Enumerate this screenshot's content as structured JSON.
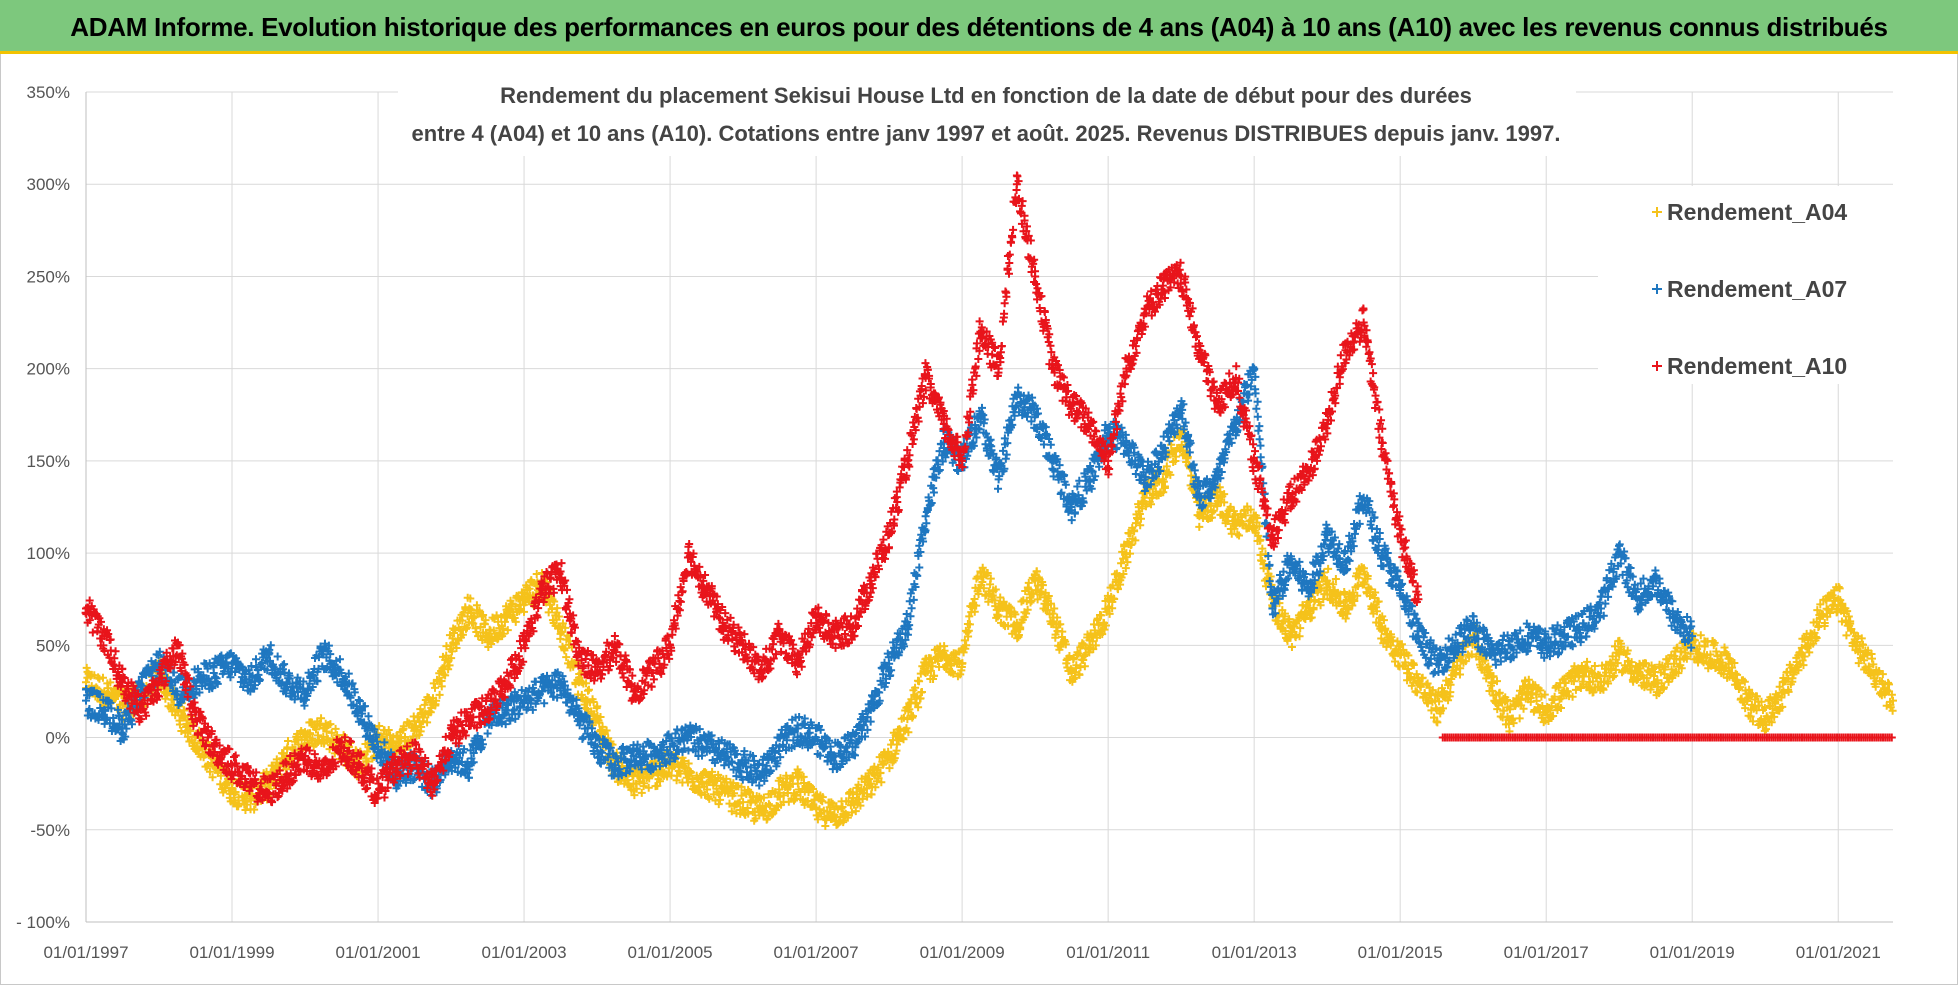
{
  "banner": {
    "title": "ADAM Informe. Evolution historique des performances en euros pour des détentions de 4 ans (A04) à 10 ans (A10) avec les revenus connus distribués"
  },
  "colors": {
    "banner_bg": "#7dc87d",
    "banner_border": "#f2c200",
    "A04": "#f5c21b",
    "A07": "#1f77c0",
    "A10": "#e8141b"
  },
  "chart_data": {
    "type": "scatter",
    "title_line1": "Rendement du placement Sekisui House Ltd en fonction de la date de début pour des durées",
    "title_line2": "entre 4 (A04) et 10 ans (A10).  Cotations entre janv 1997 et août. 2025. Revenus DISTRIBUES depuis janv. 1997.",
    "marker": "+",
    "x_axis": {
      "type": "date",
      "min": "1997-01-01",
      "max": "2021-10-01",
      "tick_labels": [
        "01/01/1997",
        "01/01/1999",
        "01/01/2001",
        "01/01/2003",
        "01/01/2005",
        "01/01/2007",
        "01/01/2009",
        "01/01/2011",
        "01/01/2013",
        "01/01/2015",
        "01/01/2017",
        "01/01/2019",
        "01/01/2021"
      ]
    },
    "y_axis": {
      "min": -100,
      "max": 350,
      "unit": "%",
      "tick_labels": [
        "350%",
        "300%",
        "250%",
        "200%",
        "150%",
        "100%",
        "50%",
        "0%",
        "-50%",
        " - 100%"
      ],
      "tick_values": [
        350,
        300,
        250,
        200,
        150,
        100,
        50,
        0,
        -50,
        -100
      ]
    },
    "grid": true,
    "legend_position": "right",
    "series": [
      {
        "name": "Rendement_A04",
        "color_key": "A04",
        "points": [
          [
            "1997-01",
            30
          ],
          [
            "1997-04",
            25
          ],
          [
            "1997-07",
            18
          ],
          [
            "1997-10",
            22
          ],
          [
            "1998-01",
            35
          ],
          [
            "1998-04",
            15
          ],
          [
            "1998-07",
            0
          ],
          [
            "1998-10",
            -15
          ],
          [
            "1999-01",
            -28
          ],
          [
            "1999-04",
            -33
          ],
          [
            "1999-07",
            -25
          ],
          [
            "1999-10",
            -10
          ],
          [
            "2000-01",
            0
          ],
          [
            "2000-04",
            5
          ],
          [
            "2000-07",
            -5
          ],
          [
            "2000-10",
            -15
          ],
          [
            "2001-01",
            0
          ],
          [
            "2001-04",
            -5
          ],
          [
            "2001-07",
            5
          ],
          [
            "2001-10",
            20
          ],
          [
            "2002-01",
            50
          ],
          [
            "2002-04",
            70
          ],
          [
            "2002-07",
            55
          ],
          [
            "2002-10",
            65
          ],
          [
            "2003-01",
            75
          ],
          [
            "2003-04",
            85
          ],
          [
            "2003-07",
            60
          ],
          [
            "2003-10",
            30
          ],
          [
            "2004-01",
            10
          ],
          [
            "2004-04",
            -15
          ],
          [
            "2004-07",
            -25
          ],
          [
            "2004-10",
            -20
          ],
          [
            "2005-01",
            -15
          ],
          [
            "2005-04",
            -20
          ],
          [
            "2005-07",
            -25
          ],
          [
            "2005-10",
            -30
          ],
          [
            "2006-01",
            -35
          ],
          [
            "2006-04",
            -40
          ],
          [
            "2006-07",
            -30
          ],
          [
            "2006-10",
            -25
          ],
          [
            "2007-01",
            -38
          ],
          [
            "2007-04",
            -42
          ],
          [
            "2007-07",
            -35
          ],
          [
            "2007-10",
            -25
          ],
          [
            "2008-01",
            -10
          ],
          [
            "2008-04",
            10
          ],
          [
            "2008-07",
            35
          ],
          [
            "2008-10",
            45
          ],
          [
            "2009-01",
            40
          ],
          [
            "2009-04",
            90
          ],
          [
            "2009-07",
            70
          ],
          [
            "2009-10",
            60
          ],
          [
            "2010-01",
            85
          ],
          [
            "2010-04",
            65
          ],
          [
            "2010-07",
            35
          ],
          [
            "2010-10",
            50
          ],
          [
            "2011-01",
            70
          ],
          [
            "2011-04",
            100
          ],
          [
            "2011-07",
            130
          ],
          [
            "2011-10",
            140
          ],
          [
            "2012-01",
            165
          ],
          [
            "2012-04",
            120
          ],
          [
            "2012-07",
            130
          ],
          [
            "2012-10",
            115
          ],
          [
            "2013-01",
            120
          ],
          [
            "2013-04",
            75
          ],
          [
            "2013-07",
            55
          ],
          [
            "2013-10",
            70
          ],
          [
            "2014-01",
            85
          ],
          [
            "2014-04",
            70
          ],
          [
            "2014-07",
            90
          ],
          [
            "2014-10",
            60
          ],
          [
            "2015-01",
            45
          ],
          [
            "2015-04",
            30
          ],
          [
            "2015-07",
            15
          ],
          [
            "2015-10",
            35
          ],
          [
            "2016-01",
            55
          ],
          [
            "2016-04",
            30
          ],
          [
            "2016-07",
            10
          ],
          [
            "2016-10",
            25
          ],
          [
            "2017-01",
            15
          ],
          [
            "2017-04",
            25
          ],
          [
            "2017-07",
            35
          ],
          [
            "2017-10",
            30
          ],
          [
            "2018-01",
            45
          ],
          [
            "2018-04",
            35
          ],
          [
            "2018-07",
            30
          ],
          [
            "2018-10",
            40
          ],
          [
            "2019-01",
            50
          ],
          [
            "2019-04",
            45
          ],
          [
            "2019-07",
            40
          ],
          [
            "2019-10",
            20
          ],
          [
            "2020-01",
            10
          ],
          [
            "2020-04",
            25
          ],
          [
            "2020-07",
            45
          ],
          [
            "2020-10",
            65
          ],
          [
            "2021-01",
            75
          ],
          [
            "2021-04",
            50
          ],
          [
            "2021-07",
            35
          ],
          [
            "2021-10",
            20
          ]
        ]
      },
      {
        "name": "Rendement_A07",
        "color_key": "A07",
        "points": [
          [
            "1997-01",
            20
          ],
          [
            "1997-04",
            15
          ],
          [
            "1997-07",
            5
          ],
          [
            "1997-10",
            25
          ],
          [
            "1998-01",
            40
          ],
          [
            "1998-04",
            25
          ],
          [
            "1998-07",
            30
          ],
          [
            "1998-10",
            35
          ],
          [
            "1999-01",
            40
          ],
          [
            "1999-04",
            30
          ],
          [
            "1999-07",
            45
          ],
          [
            "1999-10",
            30
          ],
          [
            "2000-01",
            25
          ],
          [
            "2000-04",
            45
          ],
          [
            "2000-07",
            35
          ],
          [
            "2000-10",
            15
          ],
          [
            "2001-01",
            -5
          ],
          [
            "2001-04",
            -20
          ],
          [
            "2001-07",
            -15
          ],
          [
            "2001-10",
            -25
          ],
          [
            "2002-01",
            -10
          ],
          [
            "2002-04",
            -15
          ],
          [
            "2002-07",
            10
          ],
          [
            "2002-10",
            15
          ],
          [
            "2003-01",
            20
          ],
          [
            "2003-04",
            25
          ],
          [
            "2003-07",
            30
          ],
          [
            "2003-10",
            10
          ],
          [
            "2004-01",
            -5
          ],
          [
            "2004-04",
            -15
          ],
          [
            "2004-07",
            -10
          ],
          [
            "2004-10",
            -10
          ],
          [
            "2005-01",
            -5
          ],
          [
            "2005-04",
            0
          ],
          [
            "2005-07",
            -5
          ],
          [
            "2005-10",
            -10
          ],
          [
            "2006-01",
            -15
          ],
          [
            "2006-04",
            -20
          ],
          [
            "2006-07",
            -5
          ],
          [
            "2006-10",
            5
          ],
          [
            "2007-01",
            0
          ],
          [
            "2007-04",
            -10
          ],
          [
            "2007-07",
            -5
          ],
          [
            "2007-10",
            15
          ],
          [
            "2008-01",
            40
          ],
          [
            "2008-04",
            60
          ],
          [
            "2008-07",
            120
          ],
          [
            "2008-10",
            160
          ],
          [
            "2009-01",
            150
          ],
          [
            "2009-04",
            175
          ],
          [
            "2009-07",
            140
          ],
          [
            "2009-10",
            185
          ],
          [
            "2010-01",
            175
          ],
          [
            "2010-04",
            150
          ],
          [
            "2010-07",
            125
          ],
          [
            "2010-10",
            140
          ],
          [
            "2011-01",
            165
          ],
          [
            "2011-04",
            160
          ],
          [
            "2011-07",
            140
          ],
          [
            "2011-10",
            155
          ],
          [
            "2012-01",
            180
          ],
          [
            "2012-04",
            130
          ],
          [
            "2012-07",
            140
          ],
          [
            "2012-10",
            170
          ],
          [
            "2013-01",
            200
          ],
          [
            "2013-04",
            70
          ],
          [
            "2013-07",
            95
          ],
          [
            "2013-10",
            80
          ],
          [
            "2014-01",
            110
          ],
          [
            "2014-04",
            95
          ],
          [
            "2014-07",
            130
          ],
          [
            "2014-10",
            100
          ],
          [
            "2015-01",
            80
          ],
          [
            "2015-04",
            55
          ],
          [
            "2015-07",
            40
          ],
          [
            "2015-10",
            50
          ],
          [
            "2016-01",
            60
          ],
          [
            "2016-04",
            45
          ],
          [
            "2016-07",
            50
          ],
          [
            "2016-10",
            55
          ],
          [
            "2017-01",
            50
          ],
          [
            "2017-04",
            55
          ],
          [
            "2017-07",
            60
          ],
          [
            "2017-10",
            70
          ],
          [
            "2018-01",
            100
          ],
          [
            "2018-04",
            75
          ],
          [
            "2018-07",
            85
          ],
          [
            "2018-10",
            65
          ],
          [
            "2019-01",
            55
          ]
        ]
      },
      {
        "name": "Rendement_A10",
        "color_key": "A10",
        "points": [
          [
            "1997-01",
            70
          ],
          [
            "1997-04",
            55
          ],
          [
            "1997-07",
            30
          ],
          [
            "1997-10",
            15
          ],
          [
            "1998-01",
            30
          ],
          [
            "1998-04",
            50
          ],
          [
            "1998-07",
            10
          ],
          [
            "1998-10",
            -5
          ],
          [
            "1999-01",
            -15
          ],
          [
            "1999-04",
            -25
          ],
          [
            "1999-07",
            -30
          ],
          [
            "1999-10",
            -20
          ],
          [
            "2000-01",
            -10
          ],
          [
            "2000-04",
            -20
          ],
          [
            "2000-07",
            -5
          ],
          [
            "2000-10",
            -15
          ],
          [
            "2001-01",
            -30
          ],
          [
            "2001-04",
            -15
          ],
          [
            "2001-07",
            -10
          ],
          [
            "2001-10",
            -25
          ],
          [
            "2002-01",
            0
          ],
          [
            "2002-04",
            10
          ],
          [
            "2002-07",
            15
          ],
          [
            "2002-10",
            30
          ],
          [
            "2003-01",
            50
          ],
          [
            "2003-04",
            80
          ],
          [
            "2003-07",
            90
          ],
          [
            "2003-10",
            45
          ],
          [
            "2004-01",
            35
          ],
          [
            "2004-04",
            50
          ],
          [
            "2004-07",
            25
          ],
          [
            "2004-10",
            35
          ],
          [
            "2005-01",
            50
          ],
          [
            "2005-04",
            100
          ],
          [
            "2005-07",
            80
          ],
          [
            "2005-10",
            60
          ],
          [
            "2006-01",
            50
          ],
          [
            "2006-04",
            35
          ],
          [
            "2006-07",
            55
          ],
          [
            "2006-10",
            40
          ],
          [
            "2007-01",
            65
          ],
          [
            "2007-04",
            55
          ],
          [
            "2007-07",
            60
          ],
          [
            "2007-10",
            85
          ],
          [
            "2008-01",
            110
          ],
          [
            "2008-04",
            150
          ],
          [
            "2008-07",
            195
          ],
          [
            "2008-10",
            170
          ],
          [
            "2009-01",
            150
          ],
          [
            "2009-04",
            220
          ],
          [
            "2009-07",
            200
          ],
          [
            "2009-10",
            300
          ],
          [
            "2010-01",
            250
          ],
          [
            "2010-04",
            200
          ],
          [
            "2010-07",
            180
          ],
          [
            "2010-10",
            170
          ],
          [
            "2011-01",
            150
          ],
          [
            "2011-04",
            200
          ],
          [
            "2011-07",
            230
          ],
          [
            "2011-10",
            245
          ],
          [
            "2012-01",
            250
          ],
          [
            "2012-04",
            210
          ],
          [
            "2012-07",
            180
          ],
          [
            "2012-10",
            195
          ],
          [
            "2013-01",
            150
          ],
          [
            "2013-04",
            110
          ],
          [
            "2013-07",
            130
          ],
          [
            "2013-10",
            145
          ],
          [
            "2014-01",
            170
          ],
          [
            "2014-04",
            210
          ],
          [
            "2014-07",
            225
          ],
          [
            "2014-10",
            160
          ],
          [
            "2015-01",
            110
          ],
          [
            "2015-04",
            75
          ]
        ]
      }
    ],
    "zero_band": {
      "series": "Rendement_A10",
      "from": "2015-08-01",
      "to": "2021-10-01",
      "value": 0
    }
  }
}
